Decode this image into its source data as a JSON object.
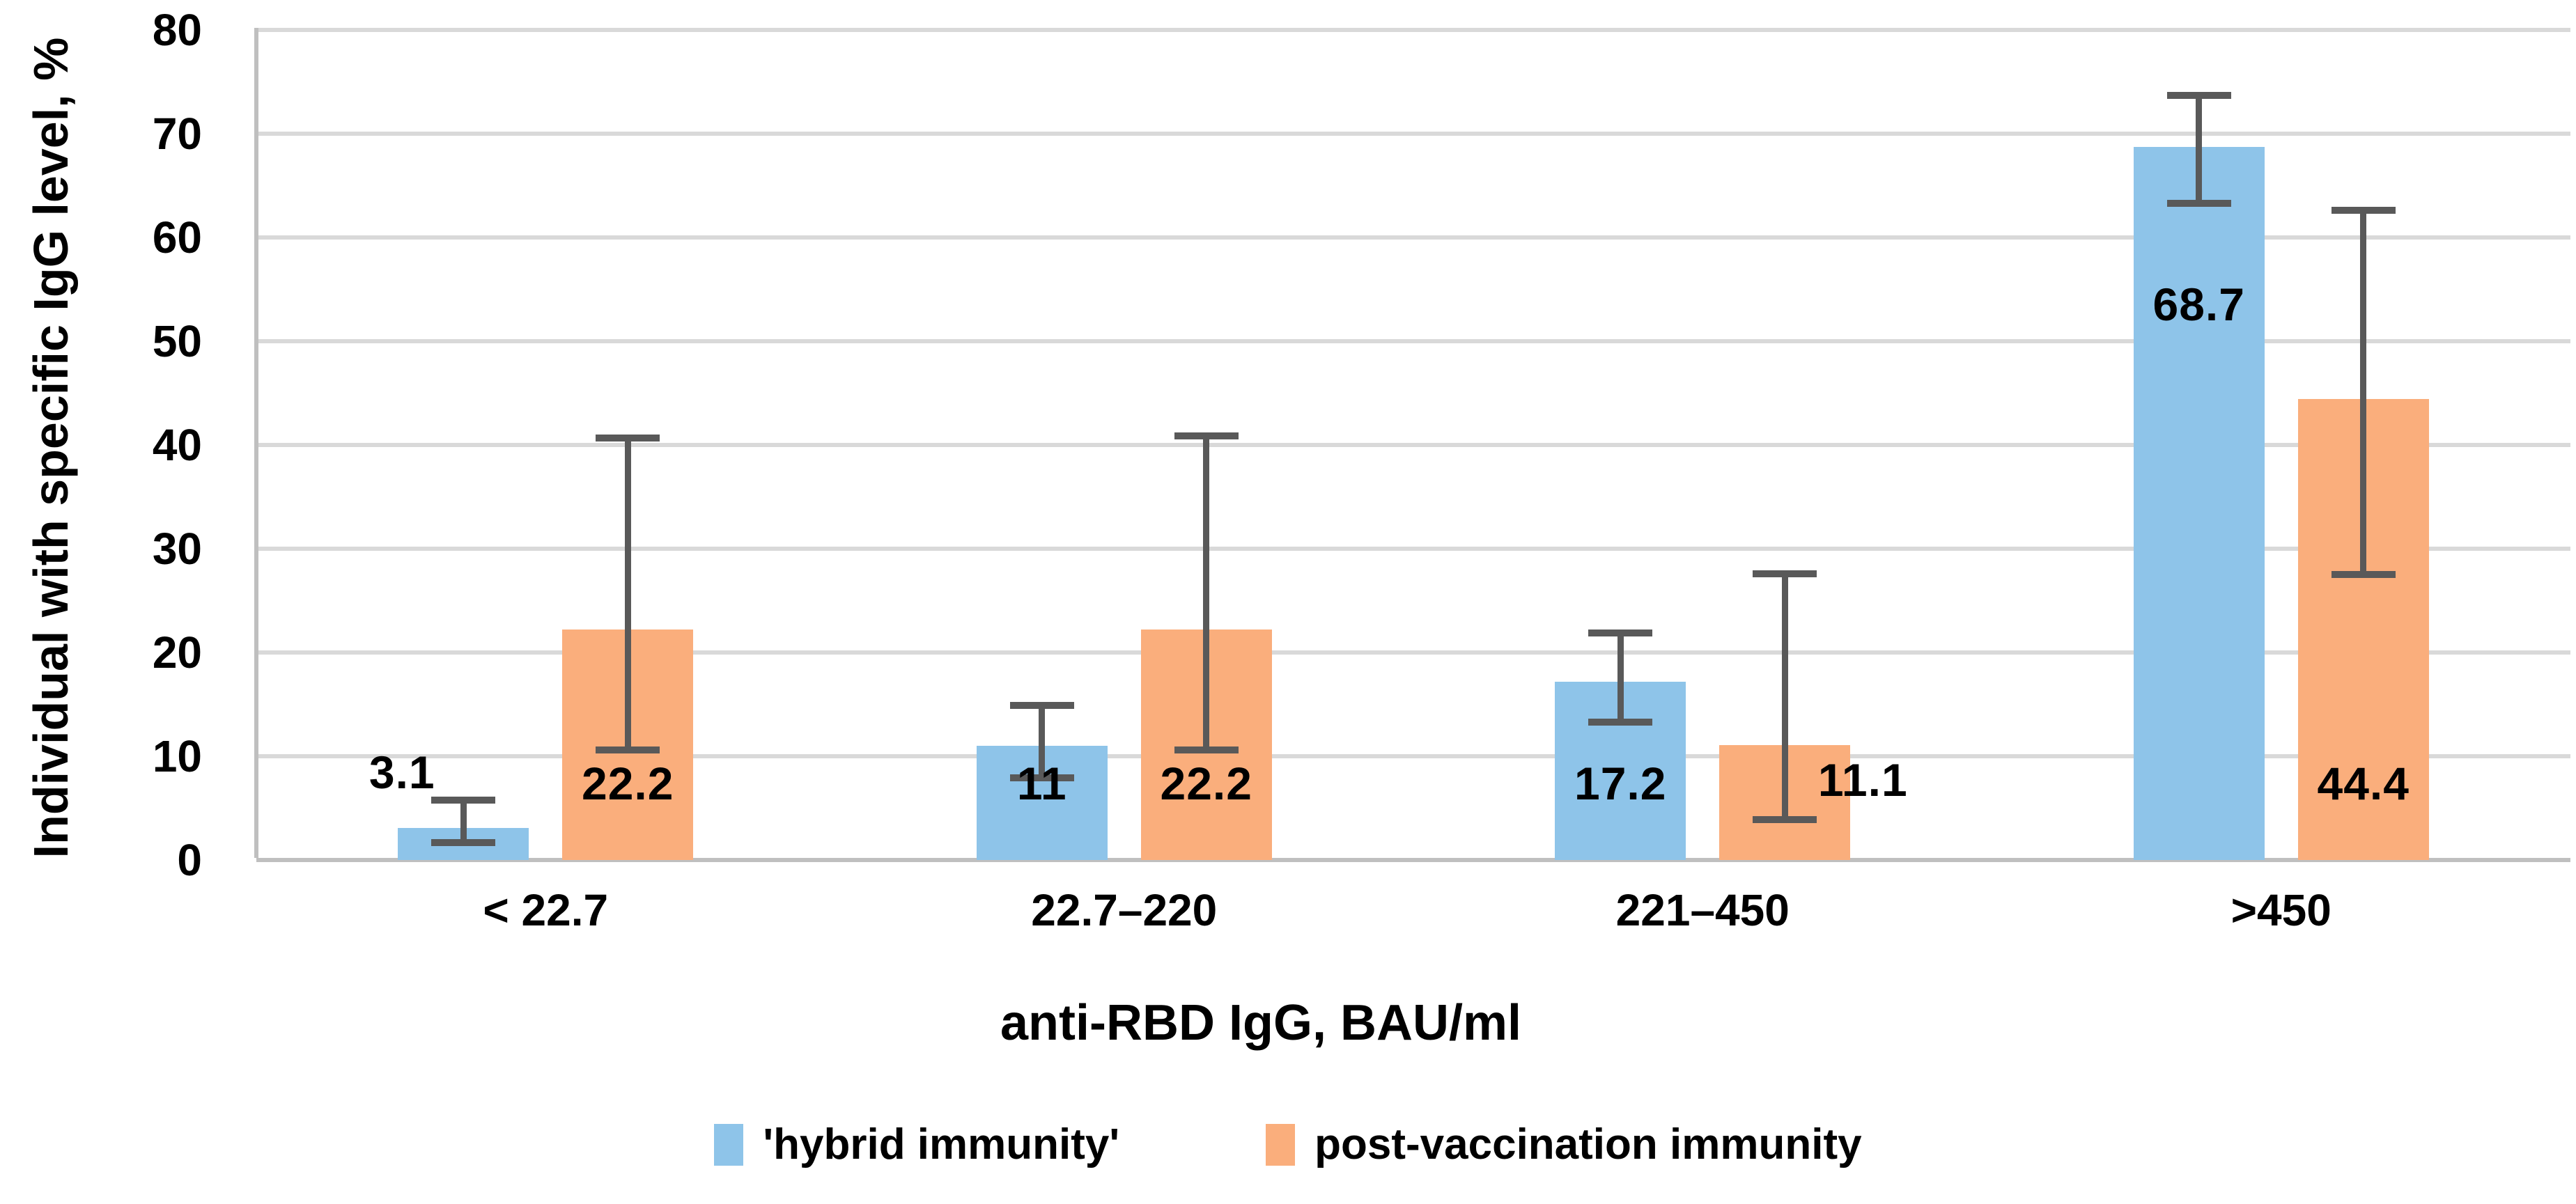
{
  "chart_data": {
    "type": "bar",
    "title": "",
    "categories": [
      "< 22.7",
      "22.7–220",
      "221–450",
      ">450"
    ],
    "xlabel": "anti-RBD IgG, BAU/ml",
    "ylabel": "Individual with specific IgG level, %",
    "ylim": [
      0,
      80
    ],
    "yticks": [
      0,
      10,
      20,
      30,
      40,
      50,
      60,
      70,
      80
    ],
    "grid": true,
    "legend_position": "bottom",
    "series": [
      {
        "name": "'hybrid immunity'",
        "color": "#8EC4E9",
        "values": [
          3.1,
          11,
          17.2,
          68.7
        ],
        "labels": [
          "3.1",
          "11",
          "17.2",
          "68.7"
        ],
        "error_low": [
          1.7,
          7.9,
          13.3,
          63.3
        ],
        "error_high": [
          5.8,
          14.9,
          21.9,
          73.7
        ],
        "label_placement": [
          "outside-left",
          "inside-base",
          "inside-base",
          "inside-middle"
        ]
      },
      {
        "name": "post-vaccination immunity",
        "color": "#FAAE7C",
        "values": [
          22.2,
          22.2,
          11.1,
          44.4
        ],
        "labels": [
          "22.2",
          "22.2",
          "11.1",
          "44.4"
        ],
        "error_low": [
          10.6,
          10.6,
          3.9,
          27.5
        ],
        "error_high": [
          40.7,
          40.9,
          27.6,
          62.6
        ],
        "label_placement": [
          "inside-base",
          "inside-base",
          "outside-right",
          "inside-base"
        ]
      }
    ],
    "colors": {
      "error_bar": "#595959",
      "gridline": "#D9D9D9",
      "axis_line": "#BFBFBF",
      "text": "#000000",
      "background": "#FFFFFF"
    }
  }
}
